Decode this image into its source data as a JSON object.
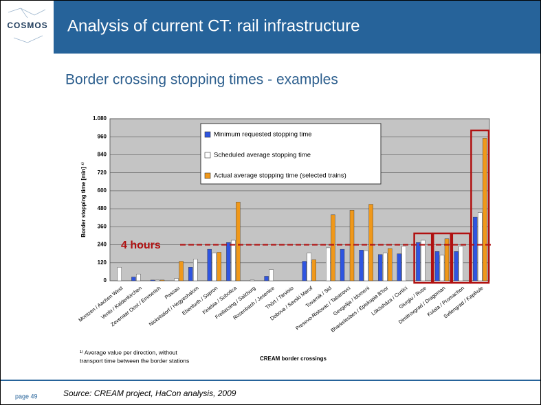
{
  "logo": "COSMOS",
  "slide_title": "Analysis of current CT: rail infrastructure",
  "subtitle": "Border crossing stopping times - examples",
  "chart_data": {
    "type": "bar",
    "ylabel": "Border stopping time [min] ¹⁾",
    "xlabel": "CREAM border crossings",
    "categories": [
      "Montzen / Aachen West",
      "Venlo / Kaldenkirchen",
      "Zevenaar Oost / Emmerich",
      "Passau",
      "Nickelsdorf / Hegyeshalom",
      "Ebenfurth / Sopron",
      "Kelebia / Subotica",
      "Freilassing / Salzburg",
      "Rosenbach / Jesenice",
      "Thört / Tarvisio",
      "Dobova / Savski Marof",
      "Tovarnik / Sid",
      "Presevo-Ristovac / Tabanovci",
      "Gevgelija / Idomeni",
      "Bharkelesbes / Episkopia B'hor",
      "Lökösháza / Curtici",
      "Giurgiu / Ruse",
      "Dimitrovgrad / Dragoman",
      "Kulata / Promachon",
      "Svilengrad / Kapikule"
    ],
    "series": [
      {
        "name": "Minimum requested stopping time",
        "color": "#2f55e0",
        "values": [
          0,
          25,
          5,
          0,
          90,
          210,
          255,
          0,
          30,
          0,
          130,
          0,
          210,
          205,
          175,
          180,
          255,
          195,
          195,
          425
        ]
      },
      {
        "name": "Scheduled average stopping time",
        "color": "#ffffff",
        "values": [
          90,
          45,
          5,
          15,
          145,
          185,
          270,
          5,
          75,
          0,
          185,
          220,
          0,
          200,
          185,
          230,
          270,
          170,
          230,
          455
        ]
      },
      {
        "name": "Actual average stopping time (selected trains)",
        "color": "#f0981a",
        "values": [
          0,
          0,
          5,
          130,
          0,
          190,
          525,
          0,
          0,
          0,
          140,
          440,
          470,
          510,
          215,
          0,
          0,
          280,
          0,
          950
        ]
      }
    ],
    "ylim": [
      0,
      1080
    ],
    "yticks": [
      0,
      120,
      240,
      360,
      480,
      600,
      720,
      840,
      960,
      {
        "value": 1080,
        "label": "1.080"
      }
    ],
    "grid": true,
    "reference_line": {
      "value": 240,
      "label": "4 hours",
      "color": "#b01010"
    },
    "footnote": [
      "¹⁾ Average value per direction, without",
      "transport time between the border stations"
    ]
  },
  "source": "Source: CREAM project, HaCon analysis, 2009",
  "page": "page 49"
}
